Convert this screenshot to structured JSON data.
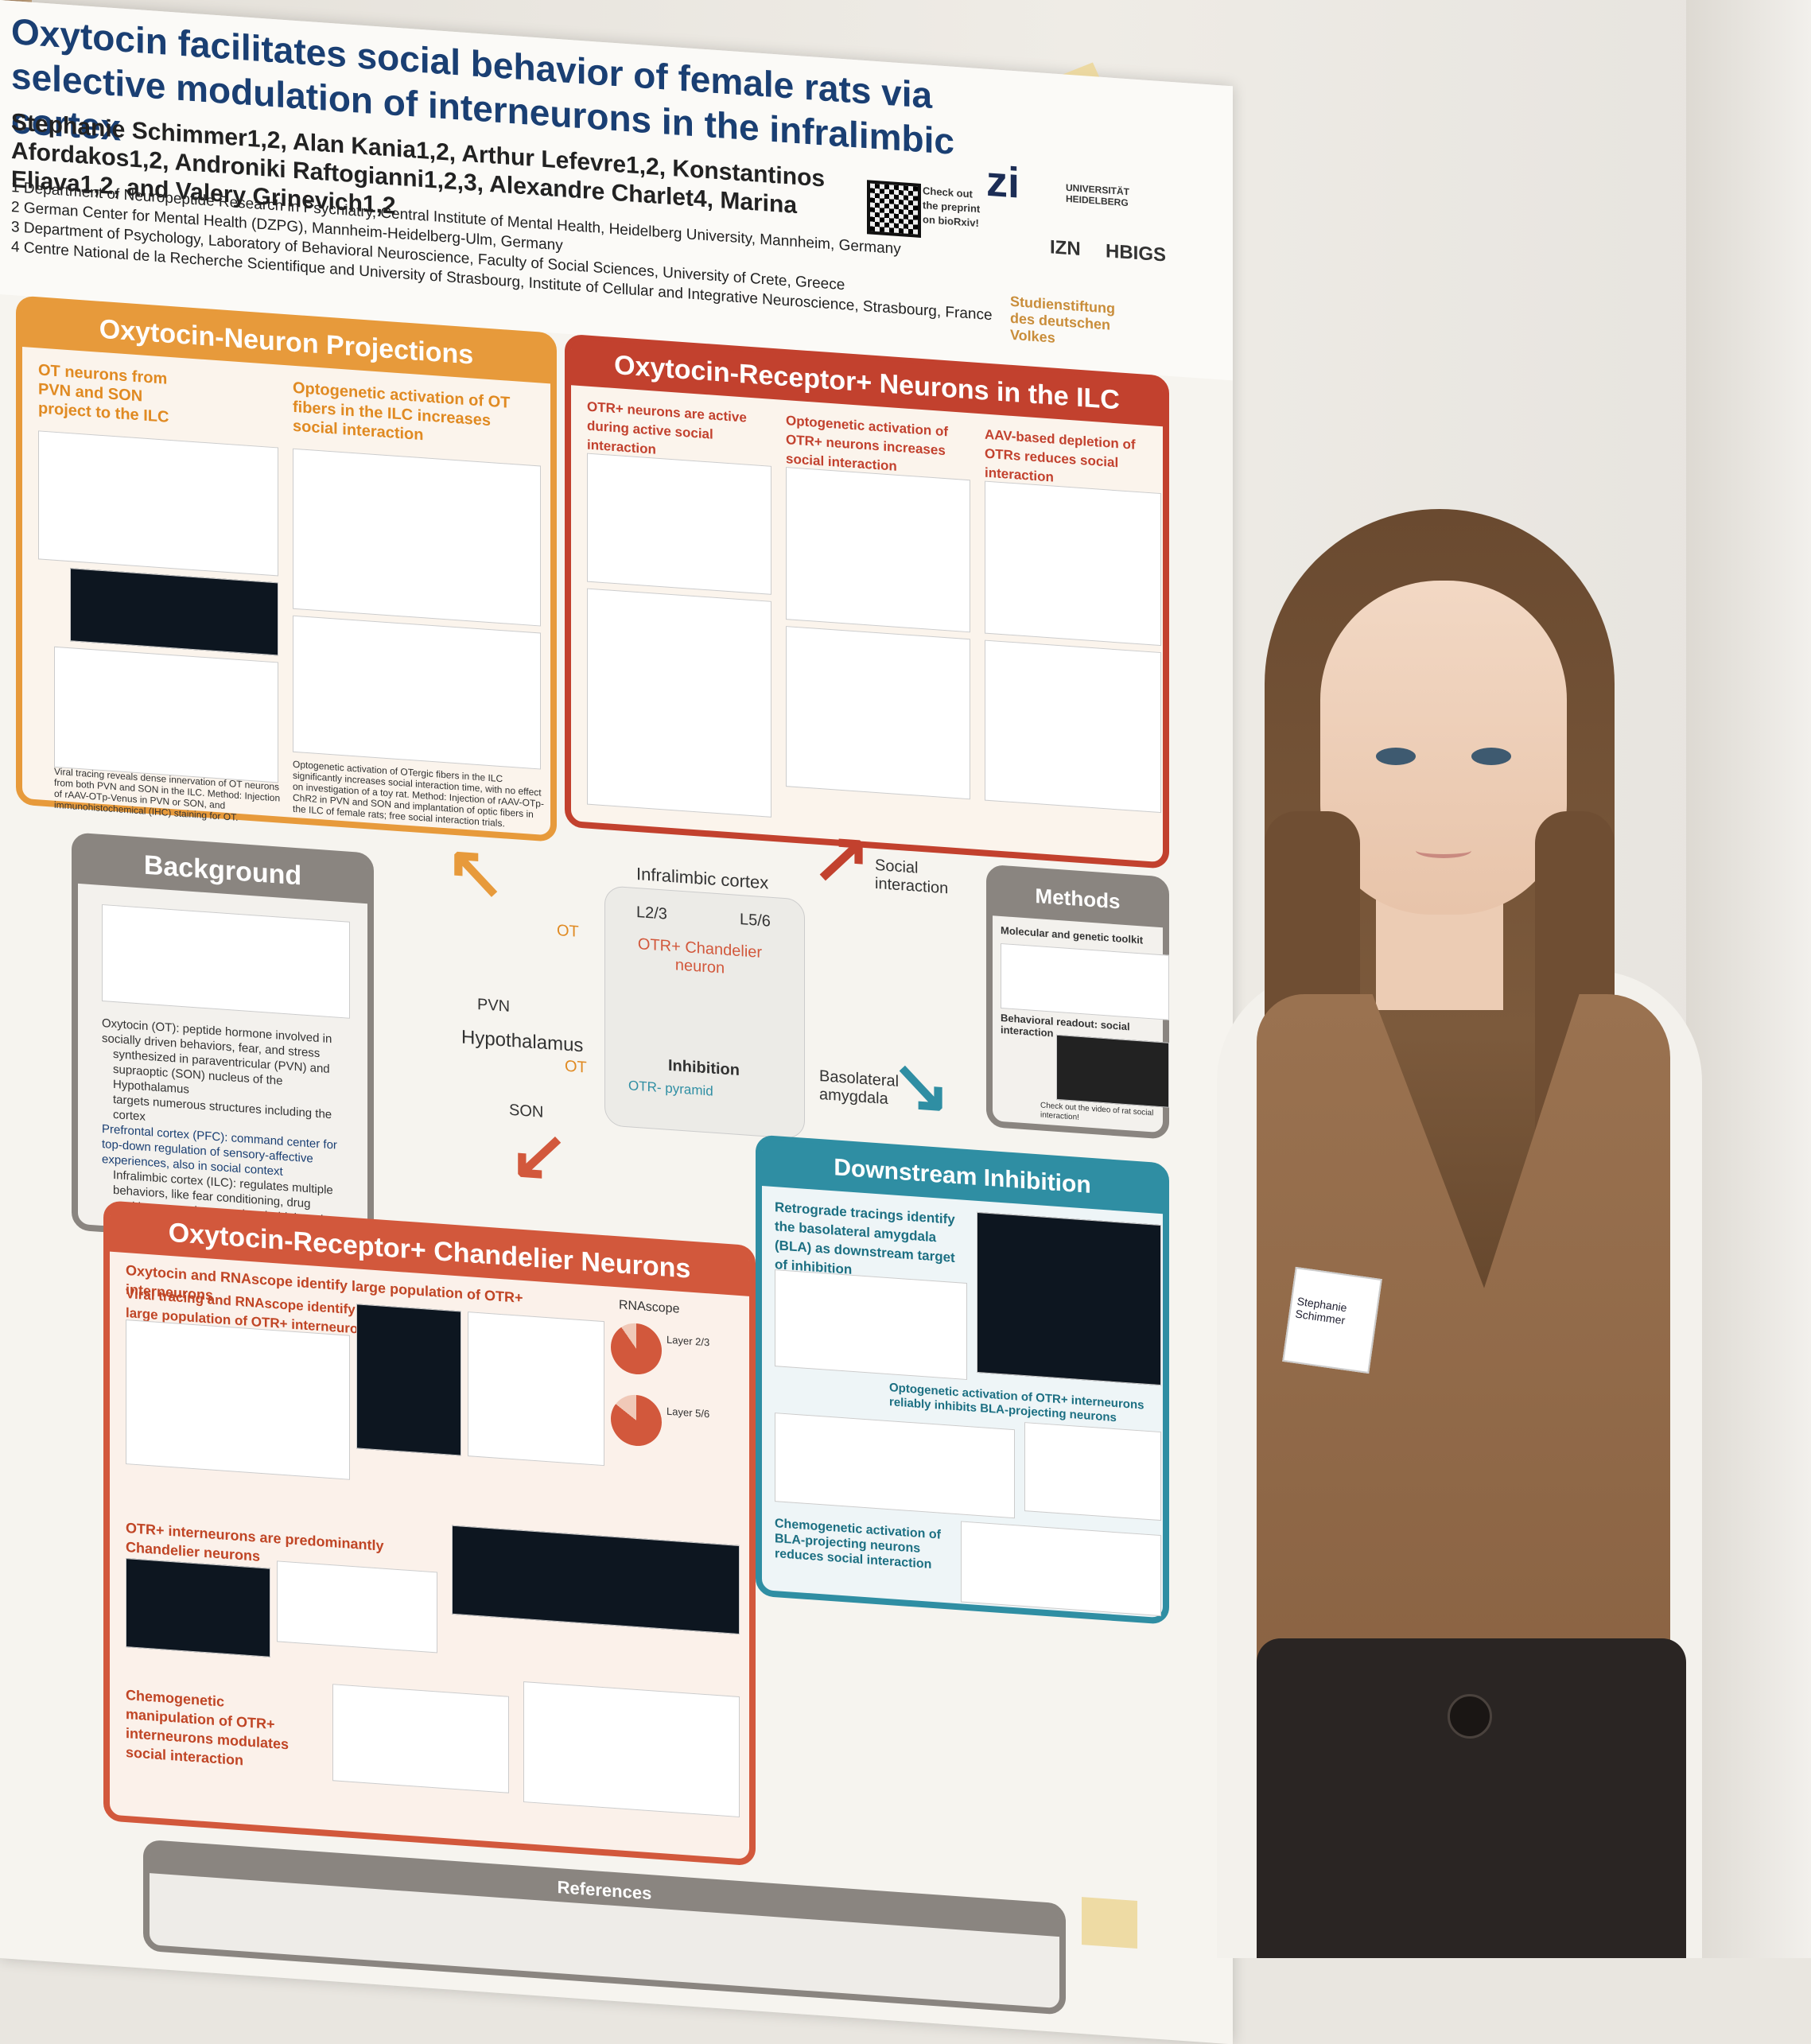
{
  "poster": {
    "title": "Oxytocin facilitates social behavior of female rats via selective modulation of interneurons in the infralimbic cortex",
    "authors": "Stephanie Schimmer1,2, Alan Kania1,2, Arthur Lefevre1,2, Konstantinos Afordakos1,2, Androniki Raftogianni1,2,3, Alexandre Charlet4, Marina Eliava1,2, and Valery Grinevich1,2",
    "affiliations": [
      "1 Department of Neuropeptide Research in Psychiatry, Central Institute of Mental Health, Heidelberg University, Mannheim, Germany",
      "2 German Center for Mental Health (DZPG), Mannheim-Heidelberg-Ulm, Germany",
      "3 Department of Psychology, Laboratory of Behavioral Neuroscience, Faculty of Social Sciences, University of Crete, Greece",
      "4 Centre National de la Recherche Scientifique and University of Strasbourg, Institute of Cellular and Integrative Neuroscience, Strasbourg, France"
    ],
    "qr_caption": "Check out the preprint on bioRxiv!",
    "logos": [
      "zi",
      "UNIVERSITÄT HEIDELBERG",
      "IZN",
      "HBIGS",
      "Studienstiftung des deutschen Volkes"
    ],
    "colors": {
      "orange": "#e79a3b",
      "red": "#c2412e",
      "teal": "#2f8ea3",
      "gray": "#8a8580",
      "title_blue": "#1a3f73"
    },
    "sections": {
      "projections": {
        "title": "Oxytocin-Neuron Projections",
        "sub1": "OT neurons from PVN and SON project to the ILC",
        "sub2": "Optogenetic activation of OT fibers in the ILC increases social interaction",
        "text1": "Viral tracing reveals dense innervation of OT neurons from both PVN and SON in the ILC. Method: Injection of rAAV-OTp-Venus in PVN or SON, and immunohistochemical (IHC) staining for OT.",
        "text2": "Optogenetic activation of OTergic fibers in the ILC significantly increases social interaction time, with no effect on investigation of a toy rat. Method: Injection of rAAV-OTp-ChR2 in PVN and SON and implantation of optic fibers in the ILC of female rats; free social interaction trials."
      },
      "otr_neurons": {
        "title": "Oxytocin-Receptor+ Neurons in the ILC",
        "sub1": "OTR+ neurons are active during active social interaction",
        "sub2": "Optogenetic activation of OTR+ neurons increases social interaction",
        "sub3": "AAV-based depletion of OTRs reduces social interaction"
      },
      "background": {
        "title": "Background",
        "bullets": [
          "Oxytocin (OT): peptide hormone involved in socially driven behaviors, fear, and stress",
          "synthesized in paraventricular (PVN) and supraoptic (SON) nucleus of the Hypothalamus",
          "targets numerous structures including the cortex",
          "Prefrontal cortex (PFC): command center for top-down regulation of sensory-affective experiences, also in social context",
          "Infralimbic cortex (ILC): regulates multiple behaviors, like fear conditioning, drug seeking, reward processing, habit learning, ..."
        ]
      },
      "center": {
        "ilc": "Infralimbic cortex",
        "layers": [
          "L2/3",
          "L5/6"
        ],
        "chandelier": "OTR+ Chandelier neuron",
        "inhibition": "Inhibition",
        "pyramid": "OTR- pyramid",
        "ot": "OT",
        "pvn": "PVN",
        "hypothalamus": "Hypothalamus",
        "son": "SON",
        "social": "Social interaction",
        "bla": "Basolateral amygdala"
      },
      "methods": {
        "title": "Methods",
        "sub1": "Molecular and genetic toolkit",
        "sub2": "Behavioral readout: social interaction",
        "cap": "Check out the video of rat social interaction!"
      },
      "downstream": {
        "title": "Downstream Inhibition",
        "sub1": "Retrograde tracings identify the basolateral amygdala (BLA) as downstream target of inhibition",
        "sub2": "Optogenetic activation of OTR+ interneurons reliably inhibits BLA-projecting neurons",
        "sub3": "Chemogenetic activation of BLA-projecting neurons reduces social interaction"
      },
      "chandelier": {
        "title": "Oxytocin-Receptor+ Chandelier Neurons",
        "sub1": "Oxytocin and RNAscope identify large population of OTR+ interneurons",
        "sub2": "Viral tracing and RNAscope identify large population of OTR+ interneurons",
        "sub3": "OTR+ interneurons are predominantly Chandelier neurons",
        "sub4": "Chemogenetic manipulation of OTR+ interneurons modulates social interaction",
        "rnascope": "RNAscope",
        "layer23": "Layer 2/3",
        "layer56": "Layer 5/6"
      },
      "references": {
        "title": "References"
      }
    }
  },
  "badge": {
    "name": "Stephanie Schimmer"
  }
}
